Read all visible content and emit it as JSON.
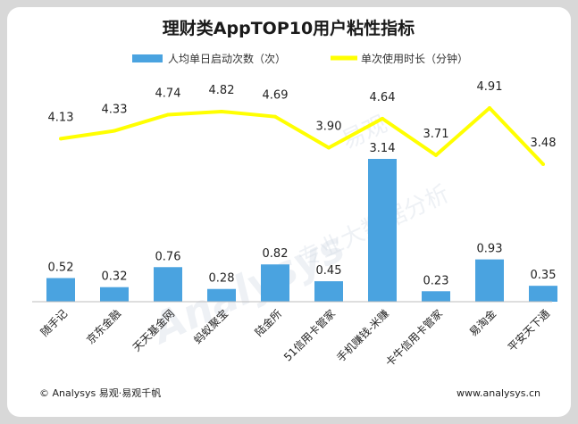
{
  "chart_data": {
    "type": "bar+line",
    "title": "理财类AppTOP10用户粘性指标",
    "categories": [
      "随手记",
      "京东金融",
      "天天基金网",
      "蚂蚁聚宝",
      "陆金所",
      "51信用卡管家",
      "手机赚钱-米赚",
      "卡牛信用卡管家",
      "易淘金",
      "平安天下通"
    ],
    "series": [
      {
        "name": "人均单日启动次数（次）",
        "type": "bar",
        "values": [
          0.52,
          0.32,
          0.76,
          0.28,
          0.82,
          0.45,
          3.14,
          0.23,
          0.93,
          0.35
        ]
      },
      {
        "name": "单次使用时长（分钟）",
        "type": "line",
        "values": [
          4.13,
          4.33,
          4.74,
          4.82,
          4.69,
          3.9,
          4.64,
          3.71,
          4.91,
          3.48
        ]
      }
    ],
    "colors": {
      "bar": "#4aa3e0",
      "line": "#ffff00"
    },
    "legend_position": "top",
    "grid": false
  },
  "footer": {
    "left": "© Analysys 易观·易观千帆",
    "right": "www.analysys.cn"
  },
  "watermark": {
    "main": "Analysys",
    "cn": "易观",
    "sub": "专业大数据分析"
  }
}
